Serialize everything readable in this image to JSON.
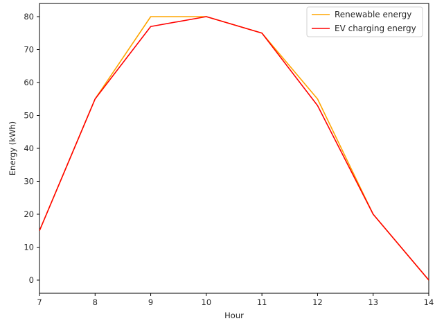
{
  "chart_data": {
    "type": "line",
    "title": "",
    "xlabel": "Hour",
    "ylabel": "Energy (kWh)",
    "x": [
      7,
      8,
      9,
      10,
      11,
      12,
      13,
      14
    ],
    "xlim": [
      7,
      14
    ],
    "ylim": [
      -4,
      84
    ],
    "xticks": [
      7,
      8,
      9,
      10,
      11,
      12,
      13,
      14
    ],
    "yticks": [
      0,
      10,
      20,
      30,
      40,
      50,
      60,
      70,
      80
    ],
    "grid": false,
    "legend_position": "top-right",
    "series": [
      {
        "name": "Renewable energy",
        "color": "#ffa500",
        "values": [
          15,
          55,
          80,
          80,
          75,
          55,
          20,
          0
        ]
      },
      {
        "name": "EV charging energy",
        "color": "#ff0000",
        "values": [
          15,
          55,
          77,
          80,
          75,
          53,
          20,
          0
        ]
      }
    ]
  }
}
